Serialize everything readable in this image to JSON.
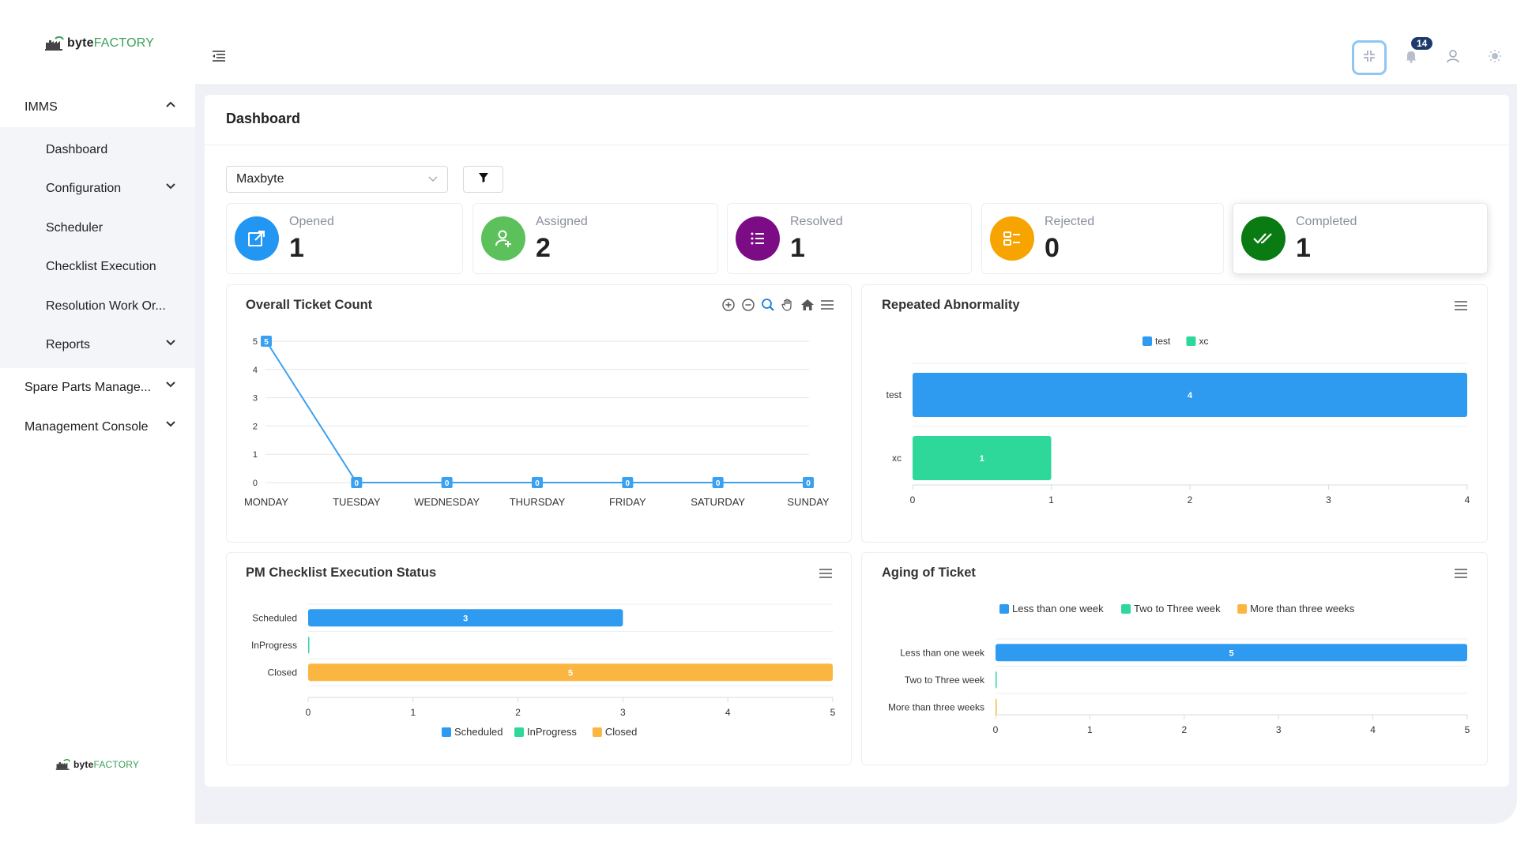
{
  "brand": {
    "name_bold": "byte",
    "name_light": "FACTORY"
  },
  "sidebar": {
    "top_item": "IMMS",
    "sub_items": [
      {
        "label": "Dashboard",
        "has_children": false
      },
      {
        "label": "Configuration",
        "has_children": true
      },
      {
        "label": "Scheduler",
        "has_children": false
      },
      {
        "label": "Checklist Execution",
        "has_children": false
      },
      {
        "label": "Resolution Work Or...",
        "has_children": false
      },
      {
        "label": "Reports",
        "has_children": true
      }
    ],
    "bottom_items": [
      {
        "label": "Spare Parts Manage..."
      },
      {
        "label": "Management Console"
      }
    ]
  },
  "topbar": {
    "notification_count": "14"
  },
  "page": {
    "title": "Dashboard"
  },
  "filter": {
    "selected": "Maxbyte"
  },
  "stats": [
    {
      "label": "Opened",
      "value": "1",
      "color": "#2196f3",
      "icon": "external-link-icon"
    },
    {
      "label": "Assigned",
      "value": "2",
      "color": "#5cc15b",
      "icon": "user-add-icon"
    },
    {
      "label": "Resolved",
      "value": "1",
      "color": "#7b0c86",
      "icon": "list-icon"
    },
    {
      "label": "Rejected",
      "value": "0",
      "color": "#f7a400",
      "icon": "checklist-icon"
    },
    {
      "label": "Completed",
      "value": "1",
      "color": "#0a7a12",
      "icon": "double-check-icon"
    }
  ],
  "colors": {
    "blue": "#2e9bf0",
    "green": "#2ed89a",
    "orange": "#fbb642",
    "line": "#3aa0f0"
  },
  "chart_data": [
    {
      "type": "line",
      "title": "Overall Ticket Count",
      "categories": [
        "MONDAY",
        "TUESDAY",
        "WEDNESDAY",
        "THURSDAY",
        "FRIDAY",
        "SATURDAY",
        "SUNDAY"
      ],
      "values": [
        5,
        0,
        0,
        0,
        0,
        0,
        0
      ],
      "ylim": [
        0,
        5
      ],
      "yticks": [
        "0",
        "1",
        "2",
        "3",
        "4",
        "5"
      ],
      "grid": true,
      "data_labels": true
    },
    {
      "type": "bar",
      "orientation": "horizontal",
      "title": "Repeated Abnormality",
      "categories": [
        "test",
        "xc"
      ],
      "series": [
        {
          "name": "test",
          "color": "#2e9bf0"
        },
        {
          "name": "xc",
          "color": "#2ed89a"
        }
      ],
      "values": [
        4,
        1
      ],
      "xlim": [
        0,
        4
      ],
      "xticks": [
        "0",
        "1",
        "2",
        "3",
        "4"
      ],
      "legend": "top-center"
    },
    {
      "type": "bar",
      "orientation": "horizontal",
      "title": "PM Checklist Execution Status",
      "categories": [
        "Scheduled",
        "InProgress",
        "Closed"
      ],
      "series": [
        {
          "name": "Scheduled",
          "color": "#2e9bf0"
        },
        {
          "name": "InProgress",
          "color": "#2ed89a"
        },
        {
          "name": "Closed",
          "color": "#fbb642"
        }
      ],
      "values": [
        3,
        0,
        5
      ],
      "xlim": [
        0,
        5
      ],
      "xticks": [
        "0",
        "1",
        "2",
        "3",
        "4",
        "5"
      ],
      "legend": "bottom-center"
    },
    {
      "type": "bar",
      "orientation": "horizontal",
      "title": "Aging of Ticket",
      "categories": [
        "Less than one week",
        "Two to Three week",
        "More than three weeks"
      ],
      "series": [
        {
          "name": "Less than one week",
          "color": "#2e9bf0"
        },
        {
          "name": "Two to Three week",
          "color": "#2ed89a"
        },
        {
          "name": "More than three weeks",
          "color": "#fbb642"
        }
      ],
      "values": [
        5,
        0,
        0
      ],
      "xlim": [
        0,
        5
      ],
      "xticks": [
        "0",
        "1",
        "2",
        "3",
        "4",
        "5"
      ],
      "legend": "top-center"
    }
  ]
}
